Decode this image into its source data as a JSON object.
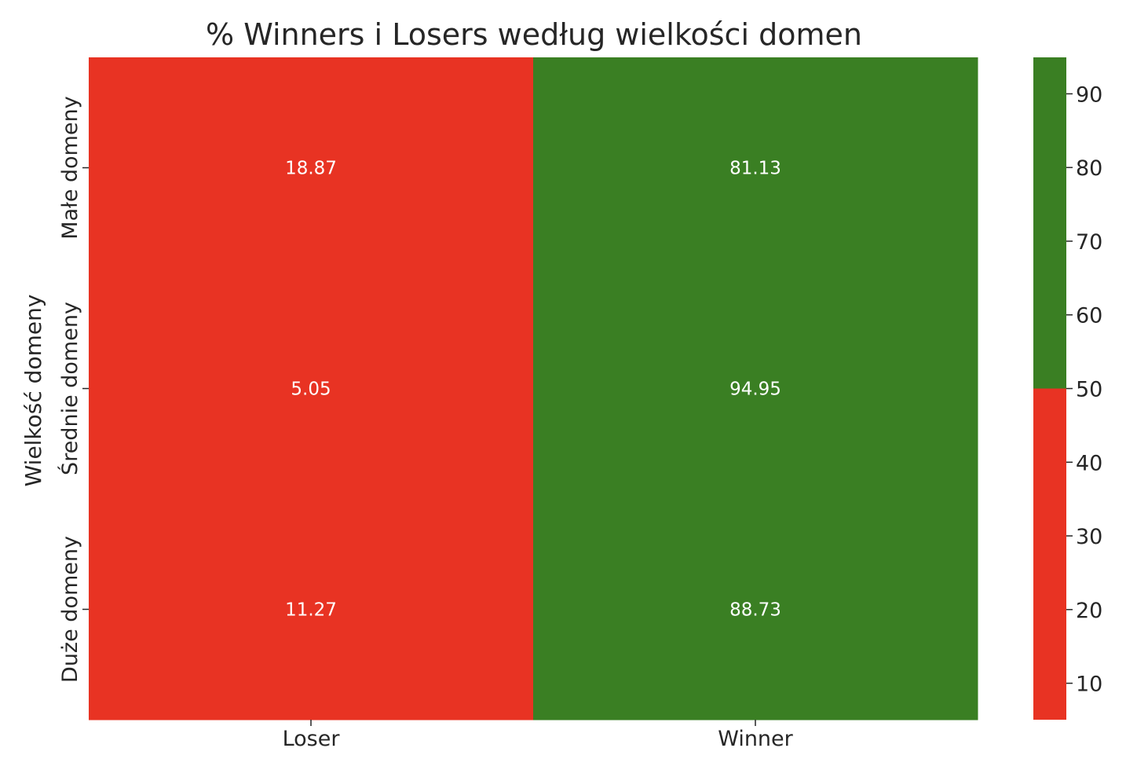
{
  "chart_data": {
    "type": "heatmap",
    "title": "% Winners i Losers według wielkości domen",
    "xlabel": "",
    "ylabel": "Wielkość domeny",
    "x_categories": [
      "Loser",
      "Winner"
    ],
    "y_categories": [
      "Małe domeny",
      "Średnie domeny",
      "Duże domeny"
    ],
    "values": [
      [
        18.87,
        81.13
      ],
      [
        5.05,
        94.95
      ],
      [
        11.27,
        88.73
      ]
    ],
    "value_labels": [
      [
        "18.87",
        "81.13"
      ],
      [
        "5.05",
        "94.95"
      ],
      [
        "11.27",
        "88.73"
      ]
    ],
    "colormap": {
      "low_color": "#e83323",
      "high_color": "#3a7f23",
      "threshold": 50,
      "vmin": 5.05,
      "vmax": 94.95
    },
    "colorbar": {
      "ticks": [
        10,
        20,
        30,
        40,
        50,
        60,
        70,
        80,
        90
      ],
      "tick_labels": [
        "10",
        "20",
        "30",
        "40",
        "50",
        "60",
        "70",
        "80",
        "90"
      ]
    }
  }
}
